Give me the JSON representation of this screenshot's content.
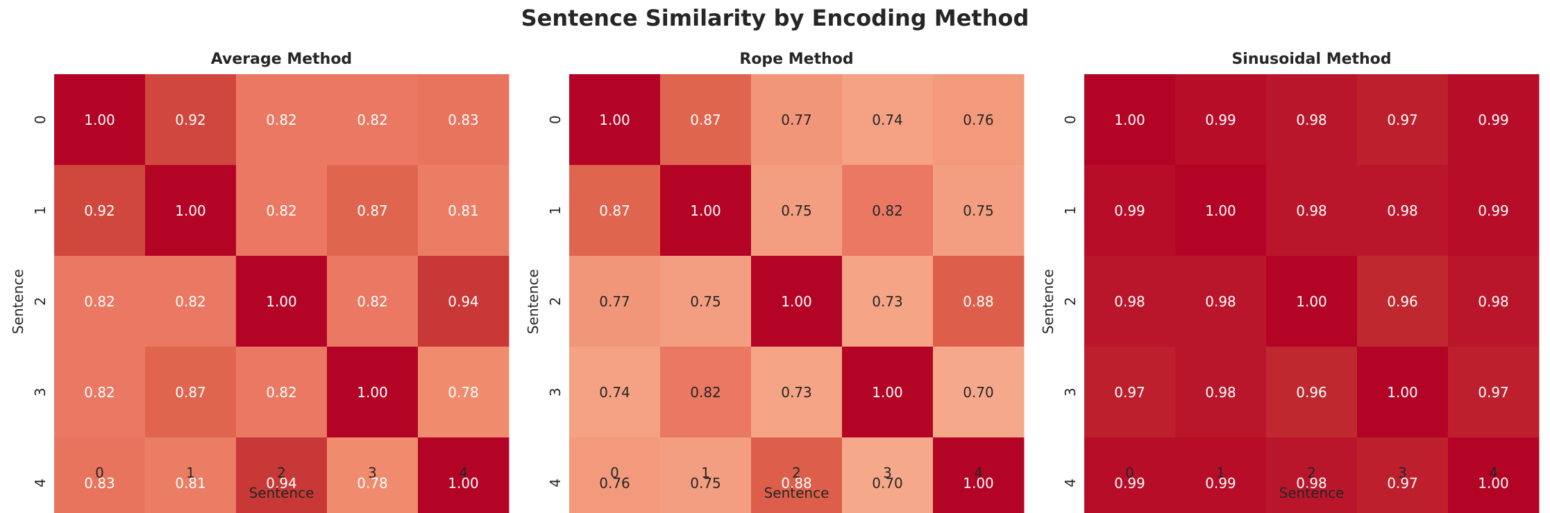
{
  "chart_data": {
    "title": "Sentence Similarity by Encoding Method",
    "panels": [
      {
        "type": "heatmap",
        "title": "Average Method",
        "xlabel": "Sentence",
        "ylabel": "Sentence",
        "x_ticks": [
          "0",
          "1",
          "2",
          "3",
          "4"
        ],
        "y_ticks": [
          "0",
          "1",
          "2",
          "3",
          "4"
        ],
        "values": [
          [
            1.0,
            0.92,
            0.82,
            0.82,
            0.83
          ],
          [
            0.92,
            1.0,
            0.82,
            0.87,
            0.81
          ],
          [
            0.82,
            0.82,
            1.0,
            0.82,
            0.94
          ],
          [
            0.82,
            0.87,
            0.82,
            1.0,
            0.78
          ],
          [
            0.83,
            0.81,
            0.94,
            0.78,
            1.0
          ]
        ]
      },
      {
        "type": "heatmap",
        "title": "Rope Method",
        "xlabel": "Sentence",
        "ylabel": "Sentence",
        "x_ticks": [
          "0",
          "1",
          "2",
          "3",
          "4"
        ],
        "y_ticks": [
          "0",
          "1",
          "2",
          "3",
          "4"
        ],
        "values": [
          [
            1.0,
            0.87,
            0.77,
            0.74,
            0.76
          ],
          [
            0.87,
            1.0,
            0.75,
            0.82,
            0.75
          ],
          [
            0.77,
            0.75,
            1.0,
            0.73,
            0.88
          ],
          [
            0.74,
            0.82,
            0.73,
            1.0,
            0.7
          ],
          [
            0.76,
            0.75,
            0.88,
            0.7,
            1.0
          ]
        ]
      },
      {
        "type": "heatmap",
        "title": "Sinusoidal Method",
        "xlabel": "Sentence",
        "ylabel": "Sentence",
        "x_ticks": [
          "0",
          "1",
          "2",
          "3",
          "4"
        ],
        "y_ticks": [
          "0",
          "1",
          "2",
          "3",
          "4"
        ],
        "values": [
          [
            1.0,
            0.99,
            0.98,
            0.97,
            0.99
          ],
          [
            0.99,
            1.0,
            0.98,
            0.98,
            0.99
          ],
          [
            0.98,
            0.98,
            1.0,
            0.96,
            0.98
          ],
          [
            0.97,
            0.98,
            0.96,
            1.0,
            0.97
          ],
          [
            0.99,
            0.99,
            0.98,
            0.97,
            1.0
          ]
        ]
      }
    ],
    "colormap": "coolwarm",
    "annotation_format": "0.00",
    "colorbar": false
  }
}
